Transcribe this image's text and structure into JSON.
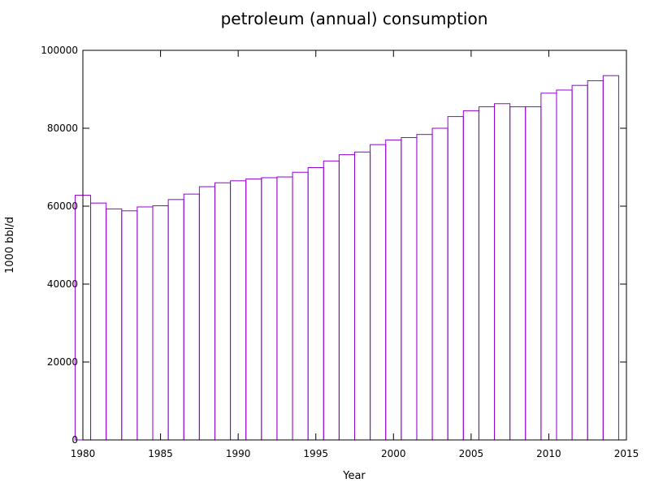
{
  "chart_data": {
    "type": "bar",
    "title": "petroleum (annual) consumption",
    "xlabel": "Year",
    "ylabel": "1000 bbl/d",
    "xlim": [
      1980,
      2015
    ],
    "ylim": [
      0,
      100000
    ],
    "x_ticks": [
      "1980",
      "1985",
      "1990",
      "1995",
      "2000",
      "2005",
      "2010",
      "2015"
    ],
    "y_ticks": [
      "0",
      "20000",
      "40000",
      "60000",
      "80000",
      "100000"
    ],
    "grid": false,
    "legend": "none",
    "bar_color": "#9400d3",
    "x": [
      1980,
      1981,
      1982,
      1983,
      1984,
      1985,
      1986,
      1987,
      1988,
      1989,
      1990,
      1991,
      1992,
      1993,
      1994,
      1995,
      1996,
      1997,
      1998,
      1999,
      2000,
      2001,
      2002,
      2003,
      2004,
      2005,
      2006,
      2007,
      2008,
      2009,
      2010,
      2011,
      2012,
      2013,
      2014
    ],
    "values": [
      62800,
      60800,
      59300,
      58800,
      59800,
      60100,
      61700,
      63100,
      65000,
      66000,
      66500,
      67000,
      67300,
      67500,
      68700,
      69900,
      71600,
      73200,
      73900,
      75800,
      77000,
      77600,
      78400,
      80000,
      83000,
      84500,
      85500,
      86300,
      85500,
      85500,
      89000,
      89800,
      91000,
      92200,
      93500
    ]
  }
}
